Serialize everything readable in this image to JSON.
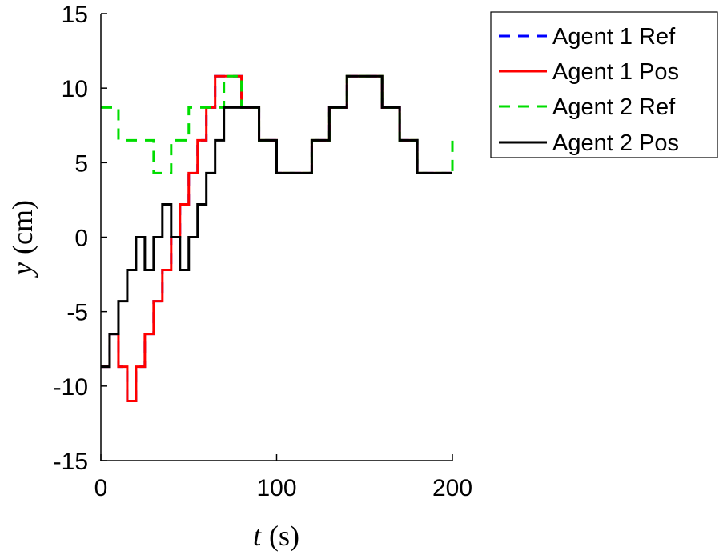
{
  "chart_data": {
    "type": "line",
    "xlabel": "t (s)",
    "xlabel_var": "t",
    "xlabel_unit": "(s)",
    "ylabel": "y (cm)",
    "ylabel_var": "y",
    "ylabel_unit": "(cm)",
    "xlim": [
      0,
      200
    ],
    "ylim": [
      -15,
      15
    ],
    "xticks": [
      0,
      100,
      200
    ],
    "yticks": [
      -15,
      -10,
      -5,
      0,
      5,
      10,
      15
    ],
    "grid": false,
    "legend_position": "outside-top-right",
    "series": [
      {
        "name": "Agent 1 Ref",
        "color": "#0000ff",
        "dash": true,
        "x": [
          0,
          5,
          10,
          15,
          20,
          25,
          30,
          35,
          40,
          45,
          50,
          55,
          60,
          65,
          70,
          75,
          80,
          90,
          100,
          110,
          120,
          130,
          140,
          150,
          160,
          170,
          180,
          190,
          200
        ],
        "y": [
          -8.7,
          -6.5,
          -8.7,
          -11,
          -8.7,
          -6.5,
          -4.3,
          -2.2,
          0,
          2.2,
          4.3,
          6.5,
          8.7,
          10.8,
          10.8,
          10.8,
          8.7,
          6.5,
          4.3,
          4.3,
          6.5,
          8.7,
          10.8,
          10.8,
          8.7,
          6.5,
          4.3,
          4.3,
          4.3
        ]
      },
      {
        "name": "Agent 1 Pos",
        "color": "#ff0000",
        "dash": false,
        "x": [
          0,
          5,
          10,
          15,
          20,
          25,
          30,
          35,
          40,
          45,
          50,
          55,
          60,
          65,
          70,
          75,
          80,
          90,
          100,
          110,
          120,
          130,
          140,
          150,
          160,
          170,
          180,
          190,
          200
        ],
        "y": [
          -8.7,
          -6.5,
          -8.7,
          -11,
          -8.7,
          -6.5,
          -4.3,
          -2.2,
          0,
          2.2,
          4.3,
          6.5,
          8.7,
          10.8,
          10.8,
          10.8,
          8.7,
          6.5,
          4.3,
          4.3,
          6.5,
          8.7,
          10.8,
          10.8,
          8.7,
          6.5,
          4.3,
          4.3,
          4.3
        ]
      },
      {
        "name": "Agent 2 Ref",
        "color": "#00dd00",
        "dash": true,
        "x": [
          0,
          10,
          20,
          30,
          40,
          50,
          60,
          70,
          80,
          90,
          100,
          110,
          120,
          130,
          140,
          150,
          160,
          170,
          180,
          190,
          200
        ],
        "y": [
          8.7,
          6.5,
          6.5,
          4.3,
          6.5,
          8.7,
          8.7,
          10.8,
          8.7,
          6.5,
          4.3,
          4.3,
          6.5,
          8.7,
          10.8,
          10.8,
          8.7,
          6.5,
          4.3,
          4.3,
          6.5
        ]
      },
      {
        "name": "Agent 2 Pos",
        "color": "#000000",
        "dash": false,
        "x": [
          0,
          5,
          10,
          15,
          20,
          25,
          30,
          35,
          40,
          45,
          50,
          55,
          60,
          65,
          70,
          75,
          80,
          90,
          100,
          110,
          120,
          130,
          140,
          150,
          160,
          170,
          180,
          190,
          200
        ],
        "y": [
          -8.7,
          -6.5,
          -4.3,
          -2.2,
          0,
          -2.2,
          0,
          2.2,
          0,
          -2.2,
          0,
          2.2,
          4.3,
          6.5,
          8.7,
          8.7,
          8.7,
          6.5,
          4.3,
          4.3,
          6.5,
          8.7,
          10.8,
          10.8,
          8.7,
          6.5,
          4.3,
          4.3,
          4.3
        ]
      }
    ]
  }
}
